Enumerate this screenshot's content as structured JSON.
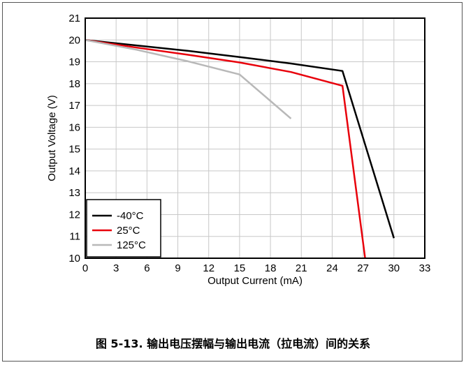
{
  "caption": "图 5-13. 输出电压摆幅与输出电流（拉电流）间的关系",
  "chart_data": {
    "type": "line",
    "xlabel": "Output Current (mA)",
    "ylabel": "Output Voltage (V)",
    "xlim": [
      0,
      33
    ],
    "ylim": [
      10,
      21
    ],
    "xticks": [
      0,
      3,
      6,
      9,
      12,
      15,
      18,
      21,
      24,
      27,
      30,
      33
    ],
    "yticks": [
      10,
      11,
      12,
      13,
      14,
      15,
      16,
      17,
      18,
      19,
      20,
      21
    ],
    "grid": true,
    "legend_position": "bottom-left",
    "series": [
      {
        "name": "-40°C",
        "color": "#000000",
        "x": [
          0,
          5,
          10,
          15,
          20,
          25,
          30
        ],
        "y": [
          20.0,
          19.75,
          19.5,
          19.22,
          18.92,
          18.58,
          10.92
        ]
      },
      {
        "name": "25°C",
        "color": "#e8000b",
        "x": [
          0,
          5,
          10,
          15,
          20,
          25,
          27.2
        ],
        "y": [
          20.0,
          19.65,
          19.32,
          18.97,
          18.53,
          17.9,
          10.0
        ]
      },
      {
        "name": "125°C",
        "color": "#b8b8b8",
        "x": [
          0,
          5,
          10,
          15,
          20
        ],
        "y": [
          20.0,
          19.55,
          19.02,
          18.42,
          16.4
        ]
      }
    ]
  }
}
